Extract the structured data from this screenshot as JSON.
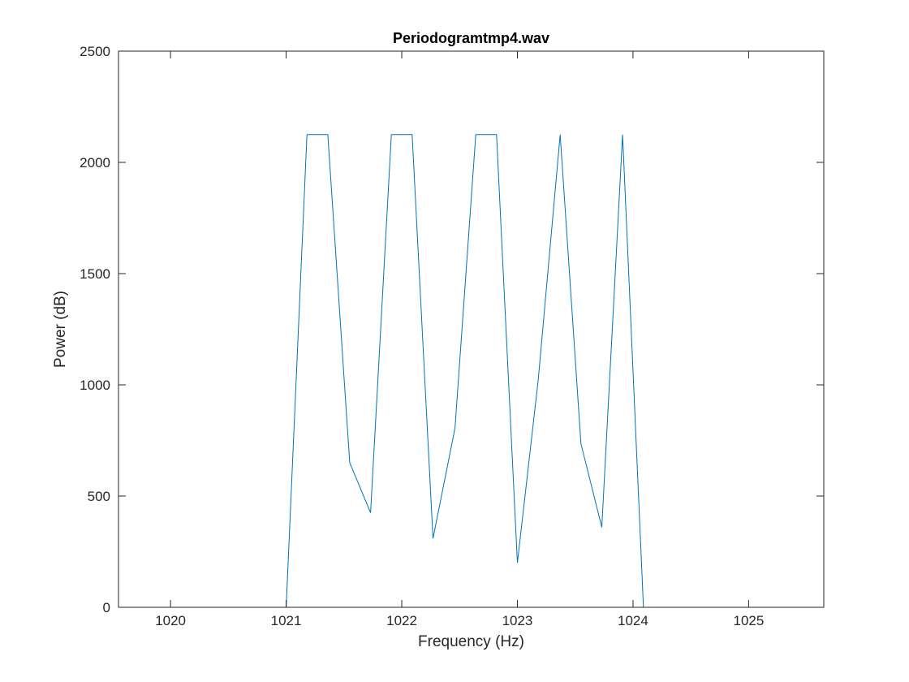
{
  "chart_data": {
    "type": "line",
    "title": "Periodogramtmp4.wav",
    "xlabel": "Frequency (Hz)",
    "ylabel": "Power (dB)",
    "xlim": [
      1019.55,
      1025.65
    ],
    "ylim": [
      0,
      2500
    ],
    "xticks": [
      1020,
      1021,
      1022,
      1023,
      1024,
      1025
    ],
    "xtick_labels": [
      "1020",
      "1021",
      "1022",
      "1023",
      "1024",
      "1025"
    ],
    "yticks": [
      0,
      500,
      1000,
      1500,
      2000,
      2500
    ],
    "ytick_labels": [
      "0",
      "500",
      "1000",
      "1500",
      "2000",
      "2500"
    ],
    "grid": false,
    "line_color": "#0072BD",
    "series": [
      {
        "x": [
          1019.55,
          1021.0,
          1021.18,
          1021.36,
          1021.55,
          1021.73,
          1021.91,
          1022.09,
          1022.27,
          1022.46,
          1022.64,
          1022.82,
          1023.0,
          1023.18,
          1023.37,
          1023.55,
          1023.73,
          1023.91,
          1024.09,
          1025.65
        ],
        "y": [
          0,
          0,
          2125,
          2125,
          650,
          425,
          2125,
          2125,
          310,
          805,
          2125,
          2125,
          200,
          1020,
          2125,
          735,
          360,
          2125,
          0,
          0
        ]
      }
    ]
  }
}
